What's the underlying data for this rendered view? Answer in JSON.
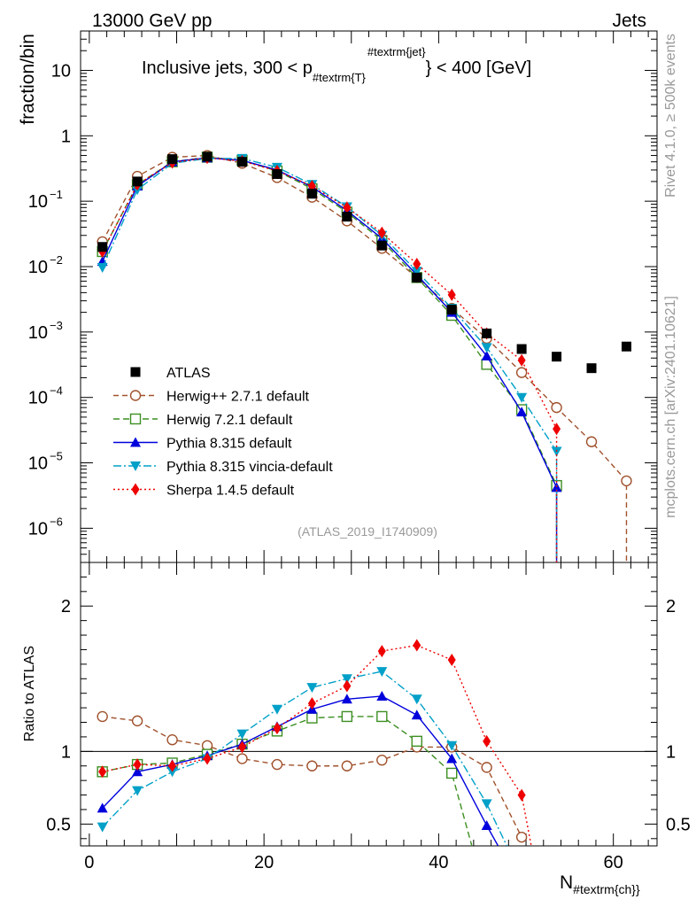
{
  "header": {
    "energy_label": "13000 GeV pp",
    "category_label": "Jets",
    "plot_title": "Inclusive jets, 300 < p",
    "plot_title_sub": "#textrm{T}",
    "plot_title_sup": "#textrm{jet}",
    "plot_title_end": "} < 400 [GeV]",
    "analysis_id": "(ATLAS_2019_I1740909)",
    "side_label_top": "Rivet 4.1.0, ≥ 500k events",
    "side_label_bottom": "mcplots.cern.ch [arXiv:2401.10621]"
  },
  "axes": {
    "main_ylabel": "fraction/bin",
    "ratio_ylabel": "Ratio to ATLAS",
    "xlabel_main": "N",
    "xlabel_sub": "#textrm{ch}}"
  },
  "chart_data": {
    "type": "line",
    "title": "Inclusive jets, 300 < pT jet < 400 [GeV]",
    "x_range": [
      -1,
      65
    ],
    "x_ticks": [
      0,
      20,
      40,
      60
    ],
    "main_y_scale": "log",
    "main_y_range": [
      3e-07,
      40
    ],
    "main_y_ticks": [
      {
        "v": 10,
        "label": "10"
      },
      {
        "v": 1,
        "label": "1"
      },
      {
        "v": 0.1,
        "label": "10",
        "exp": "−1"
      },
      {
        "v": 0.01,
        "label": "10",
        "exp": "−2"
      },
      {
        "v": 0.001,
        "label": "10",
        "exp": "−3"
      },
      {
        "v": 0.0001,
        "label": "10",
        "exp": "−4"
      },
      {
        "v": 1e-05,
        "label": "10",
        "exp": "−5"
      },
      {
        "v": 1e-06,
        "label": "10",
        "exp": "−6"
      }
    ],
    "ratio_y_range": [
      0.35,
      2.3
    ],
    "ratio_y_ticks": [
      {
        "v": 0.5,
        "label": "0.5"
      },
      {
        "v": 1,
        "label": "1"
      },
      {
        "v": 2,
        "label": "2"
      }
    ],
    "data": {
      "name": "ATLAS",
      "x": [
        1.5,
        5.5,
        9.5,
        13.5,
        17.5,
        21.5,
        25.5,
        29.5,
        33.5,
        37.5,
        41.5,
        45.5,
        49.5,
        53.5,
        57.5,
        61.5
      ],
      "y": [
        0.02,
        0.2,
        0.44,
        0.48,
        0.4,
        0.26,
        0.13,
        0.058,
        0.021,
        0.0068,
        0.0022,
        0.00095,
        0.00055,
        0.00042,
        0.00028,
        0.0006
      ]
    },
    "series": [
      {
        "name": "Herwig++ 2.7.1 default",
        "color": "#a0522d",
        "dash": "6,4",
        "marker": "open-circle",
        "x": [
          1.5,
          5.5,
          9.5,
          13.5,
          17.5,
          21.5,
          25.5,
          29.5,
          33.5,
          37.5,
          41.5,
          45.5,
          49.5,
          53.5,
          57.5,
          61.5
        ],
        "y": [
          0.024,
          0.24,
          0.47,
          0.5,
          0.38,
          0.23,
          0.115,
          0.05,
          0.019,
          0.0068,
          0.0023,
          0.0008,
          0.00024,
          7e-05,
          2.1e-05,
          5.3e-06
        ],
        "ratio_x": [
          1.5,
          5.5,
          9.5,
          13.5,
          17.5,
          21.5,
          25.5,
          29.5,
          33.5,
          37.5,
          41.5,
          45.5,
          49.5
        ],
        "ratio": [
          1.24,
          1.21,
          1.08,
          1.04,
          0.95,
          0.91,
          0.9,
          0.9,
          0.94,
          1.03,
          1.03,
          0.89,
          0.41
        ]
      },
      {
        "name": "Herwig 7.2.1 default",
        "color": "#3d8f22",
        "dash": "7,4",
        "marker": "open-square",
        "x": [
          1.5,
          5.5,
          9.5,
          13.5,
          17.5,
          21.5,
          25.5,
          29.5,
          33.5,
          37.5,
          41.5,
          45.5,
          49.5,
          53.5
        ],
        "y": [
          0.017,
          0.18,
          0.4,
          0.47,
          0.42,
          0.29,
          0.155,
          0.068,
          0.025,
          0.0068,
          0.0018,
          0.00032,
          6.5e-05,
          4.5e-06
        ],
        "ratio_x": [
          1.5,
          5.5,
          9.5,
          13.5,
          17.5,
          21.5,
          25.5,
          29.5,
          33.5,
          37.5,
          41.5,
          43.8
        ],
        "ratio": [
          0.86,
          0.91,
          0.92,
          0.98,
          1.05,
          1.14,
          1.23,
          1.24,
          1.24,
          1.07,
          0.85,
          0.35
        ]
      },
      {
        "name": "Pythia 8.315 default",
        "color": "#0000dd",
        "dash": "",
        "marker": "filled-triangle-up",
        "x": [
          1.5,
          5.5,
          9.5,
          13.5,
          17.5,
          21.5,
          25.5,
          29.5,
          33.5,
          37.5,
          41.5,
          45.5,
          49.5,
          53.5
        ],
        "y": [
          0.012,
          0.17,
          0.4,
          0.46,
          0.42,
          0.3,
          0.165,
          0.072,
          0.027,
          0.0075,
          0.002,
          0.00043,
          6e-05,
          4.2e-06
        ],
        "ratio_x": [
          1.5,
          5.5,
          9.5,
          13.5,
          17.5,
          21.5,
          25.5,
          29.5,
          33.5,
          37.5,
          41.5,
          45.5,
          46.8
        ],
        "ratio": [
          0.61,
          0.86,
          0.91,
          0.97,
          1.05,
          1.17,
          1.29,
          1.36,
          1.38,
          1.25,
          0.95,
          0.49,
          0.35
        ]
      },
      {
        "name": "Pythia 8.315 vincia-default",
        "color": "#00a0c8",
        "dash": "9,3,2,3",
        "marker": "filled-triangle-down",
        "x": [
          1.5,
          5.5,
          9.5,
          13.5,
          17.5,
          21.5,
          25.5,
          29.5,
          33.5,
          37.5,
          41.5,
          45.5,
          49.5,
          53.5
        ],
        "y": [
          0.0097,
          0.15,
          0.38,
          0.45,
          0.45,
          0.33,
          0.18,
          0.082,
          0.03,
          0.0085,
          0.0023,
          0.00058,
          0.0001,
          1.5e-05
        ],
        "ratio_x": [
          1.5,
          5.5,
          9.5,
          13.5,
          17.5,
          21.5,
          25.5,
          29.5,
          33.5,
          37.5,
          41.5,
          45.5,
          47.8
        ],
        "ratio": [
          0.48,
          0.73,
          0.86,
          0.95,
          1.12,
          1.29,
          1.44,
          1.5,
          1.55,
          1.36,
          1.04,
          0.64,
          0.35
        ]
      },
      {
        "name": "Sherpa 1.4.5 default",
        "color": "#ee0000",
        "dash": "2,3",
        "marker": "filled-diamond",
        "x": [
          1.5,
          5.5,
          9.5,
          13.5,
          17.5,
          21.5,
          25.5,
          29.5,
          33.5,
          37.5,
          41.5,
          45.5,
          49.5,
          53.5
        ],
        "y": [
          0.017,
          0.18,
          0.39,
          0.46,
          0.41,
          0.29,
          0.17,
          0.08,
          0.033,
          0.011,
          0.0037,
          0.00095,
          0.00037,
          3.3e-05
        ],
        "ratio_x": [
          1.5,
          5.5,
          9.5,
          13.5,
          17.5,
          21.5,
          25.5,
          29.5,
          33.5,
          37.5,
          41.5,
          45.5,
          49.5,
          50.6
        ],
        "ratio": [
          0.86,
          0.91,
          0.9,
          0.95,
          1.03,
          1.16,
          1.33,
          1.45,
          1.69,
          1.73,
          1.63,
          1.07,
          0.7,
          0.35
        ]
      }
    ]
  }
}
